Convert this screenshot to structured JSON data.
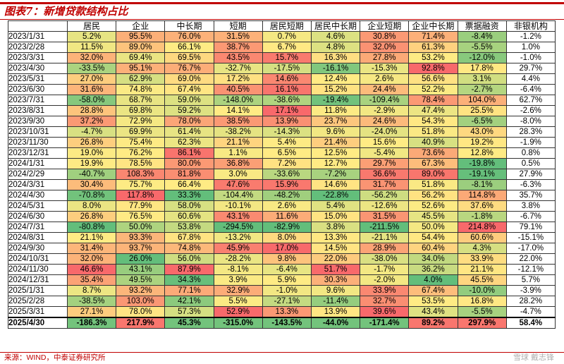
{
  "title": "图表7：新增贷款结构占比",
  "source": "来源：WIND，中泰证券研究所",
  "watermark": "雪球 戴志锋",
  "chart_data": {
    "type": "table",
    "title": "图表7：新增贷款结构占比",
    "columns": [
      "居民",
      "企业",
      "中长期",
      "短期",
      "居民短期",
      "居民中长期",
      "企业短期",
      "企业中长期",
      "票据融资",
      "非银机构"
    ],
    "heatmap_colors": {
      "low": "#63be7b",
      "mid": "#ffeb84",
      "high": "#f8696b"
    },
    "rows": [
      {
        "date": "2023/1/31",
        "values": [
          "5.2%",
          "95.5%",
          "76.0%",
          "31.5%",
          "0.7%",
          "4.6%",
          "30.8%",
          "71.4%",
          "-8.4%",
          "-1.2%"
        ]
      },
      {
        "date": "2023/2/28",
        "values": [
          "11.5%",
          "89.0%",
          "66.1%",
          "38.7%",
          "6.7%",
          "4.8%",
          "32.0%",
          "61.3%",
          "-5.5%",
          "1.0%"
        ]
      },
      {
        "date": "2023/3/31",
        "values": [
          "32.0%",
          "69.4%",
          "69.5%",
          "43.5%",
          "15.7%",
          "16.3%",
          "27.8%",
          "53.2%",
          "-12.0%",
          "-1.0%"
        ]
      },
      {
        "date": "2023/4/30",
        "values": [
          "-33.5%",
          "95.1%",
          "76.7%",
          "-32.7%",
          "-17.5%",
          "-16.1%",
          "-15.3%",
          "92.8%",
          "17.8%",
          "29.7%"
        ]
      },
      {
        "date": "2023/5/31",
        "values": [
          "27.0%",
          "62.9%",
          "69.0%",
          "17.2%",
          "14.6%",
          "12.4%",
          "2.6%",
          "56.6%",
          "3.1%",
          "4.4%"
        ]
      },
      {
        "date": "2023/6/30",
        "values": [
          "31.6%",
          "74.8%",
          "67.4%",
          "40.5%",
          "16.1%",
          "15.2%",
          "24.4%",
          "52.2%",
          "-2.7%",
          "-6.4%"
        ]
      },
      {
        "date": "2023/7/31",
        "values": [
          "-58.0%",
          "68.7%",
          "59.0%",
          "-148.0%",
          "-38.6%",
          "-19.4%",
          "-109.4%",
          "78.4%",
          "104.0%",
          "62.7%"
        ]
      },
      {
        "date": "2023/8/31",
        "values": [
          "28.8%",
          "69.8%",
          "59.2%",
          "14.1%",
          "17.1%",
          "11.8%",
          "-2.9%",
          "47.4%",
          "25.5%",
          "-2.6%"
        ]
      },
      {
        "date": "2023/9/30",
        "values": [
          "37.2%",
          "72.9%",
          "78.0%",
          "38.5%",
          "13.9%",
          "23.7%",
          "24.6%",
          "54.3%",
          "-6.5%",
          "-8.0%"
        ]
      },
      {
        "date": "2023/10/31",
        "values": [
          "-4.7%",
          "69.9%",
          "61.4%",
          "-38.2%",
          "-14.3%",
          "9.6%",
          "-24.0%",
          "51.8%",
          "43.0%",
          "28.3%"
        ]
      },
      {
        "date": "2023/11/30",
        "values": [
          "26.8%",
          "75.4%",
          "62.3%",
          "21.1%",
          "5.4%",
          "21.4%",
          "15.6%",
          "40.9%",
          "19.2%",
          "-1.9%"
        ]
      },
      {
        "date": "2023/12/31",
        "values": [
          "19.0%",
          "76.2%",
          "86.1%",
          "1.1%",
          "6.5%",
          "12.5%",
          "-5.4%",
          "73.6%",
          "12.8%",
          "0.8%"
        ]
      },
      {
        "date": "2024/1/31",
        "values": [
          "19.9%",
          "78.5%",
          "80.0%",
          "36.8%",
          "7.2%",
          "12.7%",
          "29.7%",
          "67.3%",
          "-19.8%",
          "0.5%"
        ]
      },
      {
        "date": "2024/2/29",
        "values": [
          "-40.7%",
          "108.3%",
          "81.8%",
          "3.0%",
          "-33.6%",
          "-7.2%",
          "36.6%",
          "89.0%",
          "-19.1%",
          "27.9%"
        ]
      },
      {
        "date": "2024/3/31",
        "values": [
          "30.4%",
          "75.7%",
          "66.4%",
          "47.6%",
          "15.9%",
          "14.6%",
          "31.7%",
          "51.8%",
          "-8.1%",
          "-6.3%"
        ]
      },
      {
        "date": "2024/4/30",
        "values": [
          "-70.8%",
          "117.8%",
          "33.3%",
          "-104.4%",
          "-48.2%",
          "-22.8%",
          "-56.2%",
          "56.2%",
          "114.8%",
          "35.7%"
        ]
      },
      {
        "date": "2024/5/31",
        "values": [
          "8.0%",
          "77.9%",
          "58.0%",
          "-10.1%",
          "2.6%",
          "5.4%",
          "-12.6%",
          "52.6%",
          "37.6%",
          "3.8%"
        ]
      },
      {
        "date": "2024/6/30",
        "values": [
          "26.8%",
          "76.5%",
          "60.6%",
          "43.1%",
          "11.6%",
          "15.0%",
          "31.5%",
          "45.5%",
          "-1.8%",
          "-6.7%"
        ]
      },
      {
        "date": "2024/7/31",
        "values": [
          "-80.8%",
          "50.0%",
          "53.8%",
          "-294.5%",
          "-82.9%",
          "3.8%",
          "-211.5%",
          "50.0%",
          "214.8%",
          "79.1%"
        ]
      },
      {
        "date": "2024/8/31",
        "values": [
          "21.1%",
          "93.3%",
          "67.8%",
          "-13.2%",
          "8.0%",
          "13.3%",
          "-21.1%",
          "54.4%",
          "60.6%",
          "-15.1%"
        ]
      },
      {
        "date": "2024/9/30",
        "values": [
          "31.4%",
          "93.7%",
          "74.8%",
          "45.9%",
          "17.0%",
          "14.5%",
          "28.9%",
          "60.4%",
          "4.3%",
          "-17.0%"
        ]
      },
      {
        "date": "2024/10/31",
        "values": [
          "32.0%",
          "26.0%",
          "56.0%",
          "-28.2%",
          "9.8%",
          "22.0%",
          "-38.0%",
          "34.0%",
          "33.9%",
          "22.0%"
        ]
      },
      {
        "date": "2024/11/30",
        "values": [
          "46.6%",
          "43.1%",
          "87.9%",
          "-8.1%",
          "-6.4%",
          "51.7%",
          "-1.7%",
          "36.2%",
          "21.1%",
          "-12.1%"
        ]
      },
      {
        "date": "2024/12/31",
        "values": [
          "35.4%",
          "49.5%",
          "34.3%",
          "3.9%",
          "5.9%",
          "30.3%",
          "-2.0%",
          "4.0%",
          "45.5%",
          "5.7%"
        ]
      },
      {
        "date": "2025/1/31",
        "values": [
          "8.7%",
          "93.2%",
          "77.1%",
          "32.9%",
          "-1.0%",
          "9.6%",
          "33.9%",
          "67.4%",
          "-10.0%",
          "-3.9%"
        ]
      },
      {
        "date": "2025/2/28",
        "values": [
          "-38.5%",
          "103.0%",
          "42.1%",
          "5.5%",
          "-27.1%",
          "-11.4%",
          "32.7%",
          "53.5%",
          "16.8%",
          "28.2%"
        ]
      },
      {
        "date": "2025/3/31",
        "values": [
          "27.1%",
          "78.0%",
          "57.3%",
          "52.9%",
          "13.3%",
          "13.9%",
          "39.6%",
          "43.4%",
          "-5.5%",
          "-4.7%"
        ]
      },
      {
        "date": "2025/4/30",
        "values": [
          "-186.3%",
          "217.9%",
          "45.3%",
          "-315.0%",
          "-143.5%",
          "-44.0%",
          "-171.4%",
          "89.2%",
          "297.9%",
          "58.4%"
        ]
      }
    ]
  }
}
